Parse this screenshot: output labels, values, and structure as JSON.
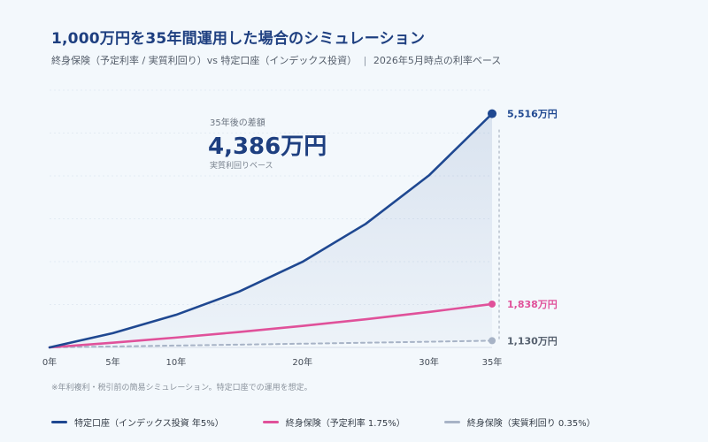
{
  "header": {
    "title": "1,000万円を35年間運用した場合のシミュレーション",
    "subtitle_main": "終身保険（予定利率 / 実質利回り）vs 特定口座（インデックス投資）",
    "subtitle_sep": "|",
    "subtitle_date": "2026年5月時点の利率ベース"
  },
  "annotation": {
    "label": "35年後の差額",
    "value": "4,386万円",
    "note": "実質利回りベース"
  },
  "footnote": "※年利複利・税引前の簡易シミュレーション。特定口座での運用を想定。",
  "legend": [
    {
      "label": "特定口座（インデックス投資 年5%）",
      "color": "#1f4891"
    },
    {
      "label": "終身保険（予定利率 1.75%）",
      "color": "#e0519a"
    },
    {
      "label": "終身保険（実質利回り 0.35%）",
      "color": "#a7b3c6"
    }
  ],
  "chart_data": {
    "type": "line",
    "title": "1,000万円を35年間運用した場合のシミュレーション",
    "x_tick_labels": [
      "0年",
      "5年",
      "10年",
      "20年",
      "30年",
      "35年"
    ],
    "x_ticks": [
      0,
      5,
      10,
      20,
      30,
      35
    ],
    "xlim": [
      0,
      35
    ],
    "ylim": [
      1000,
      5800
    ],
    "x": [
      0,
      5,
      10,
      15,
      20,
      25,
      30,
      35
    ],
    "series": [
      {
        "name": "特定口座（インデックス投資 年5%）",
        "color": "#1f4891",
        "values": [
          1000,
          1276,
          1629,
          2079,
          2653,
          3386,
          4322,
          5516
        ],
        "end_label": "5,516万円",
        "style": "solid"
      },
      {
        "name": "終身保険（予定利率 1.75%）",
        "color": "#e0519a",
        "values": [
          1000,
          1091,
          1190,
          1298,
          1415,
          1544,
          1684,
          1838
        ],
        "end_label": "1,838万円",
        "style": "solid"
      },
      {
        "name": "終身保険（実質利回り 0.35%）",
        "color": "#a7b3c6",
        "values": [
          1000,
          1018,
          1036,
          1054,
          1072,
          1091,
          1110,
          1130
        ],
        "end_label": "1,130万円",
        "style": "dashed"
      }
    ],
    "grid": true,
    "legend_position": "bottom"
  }
}
